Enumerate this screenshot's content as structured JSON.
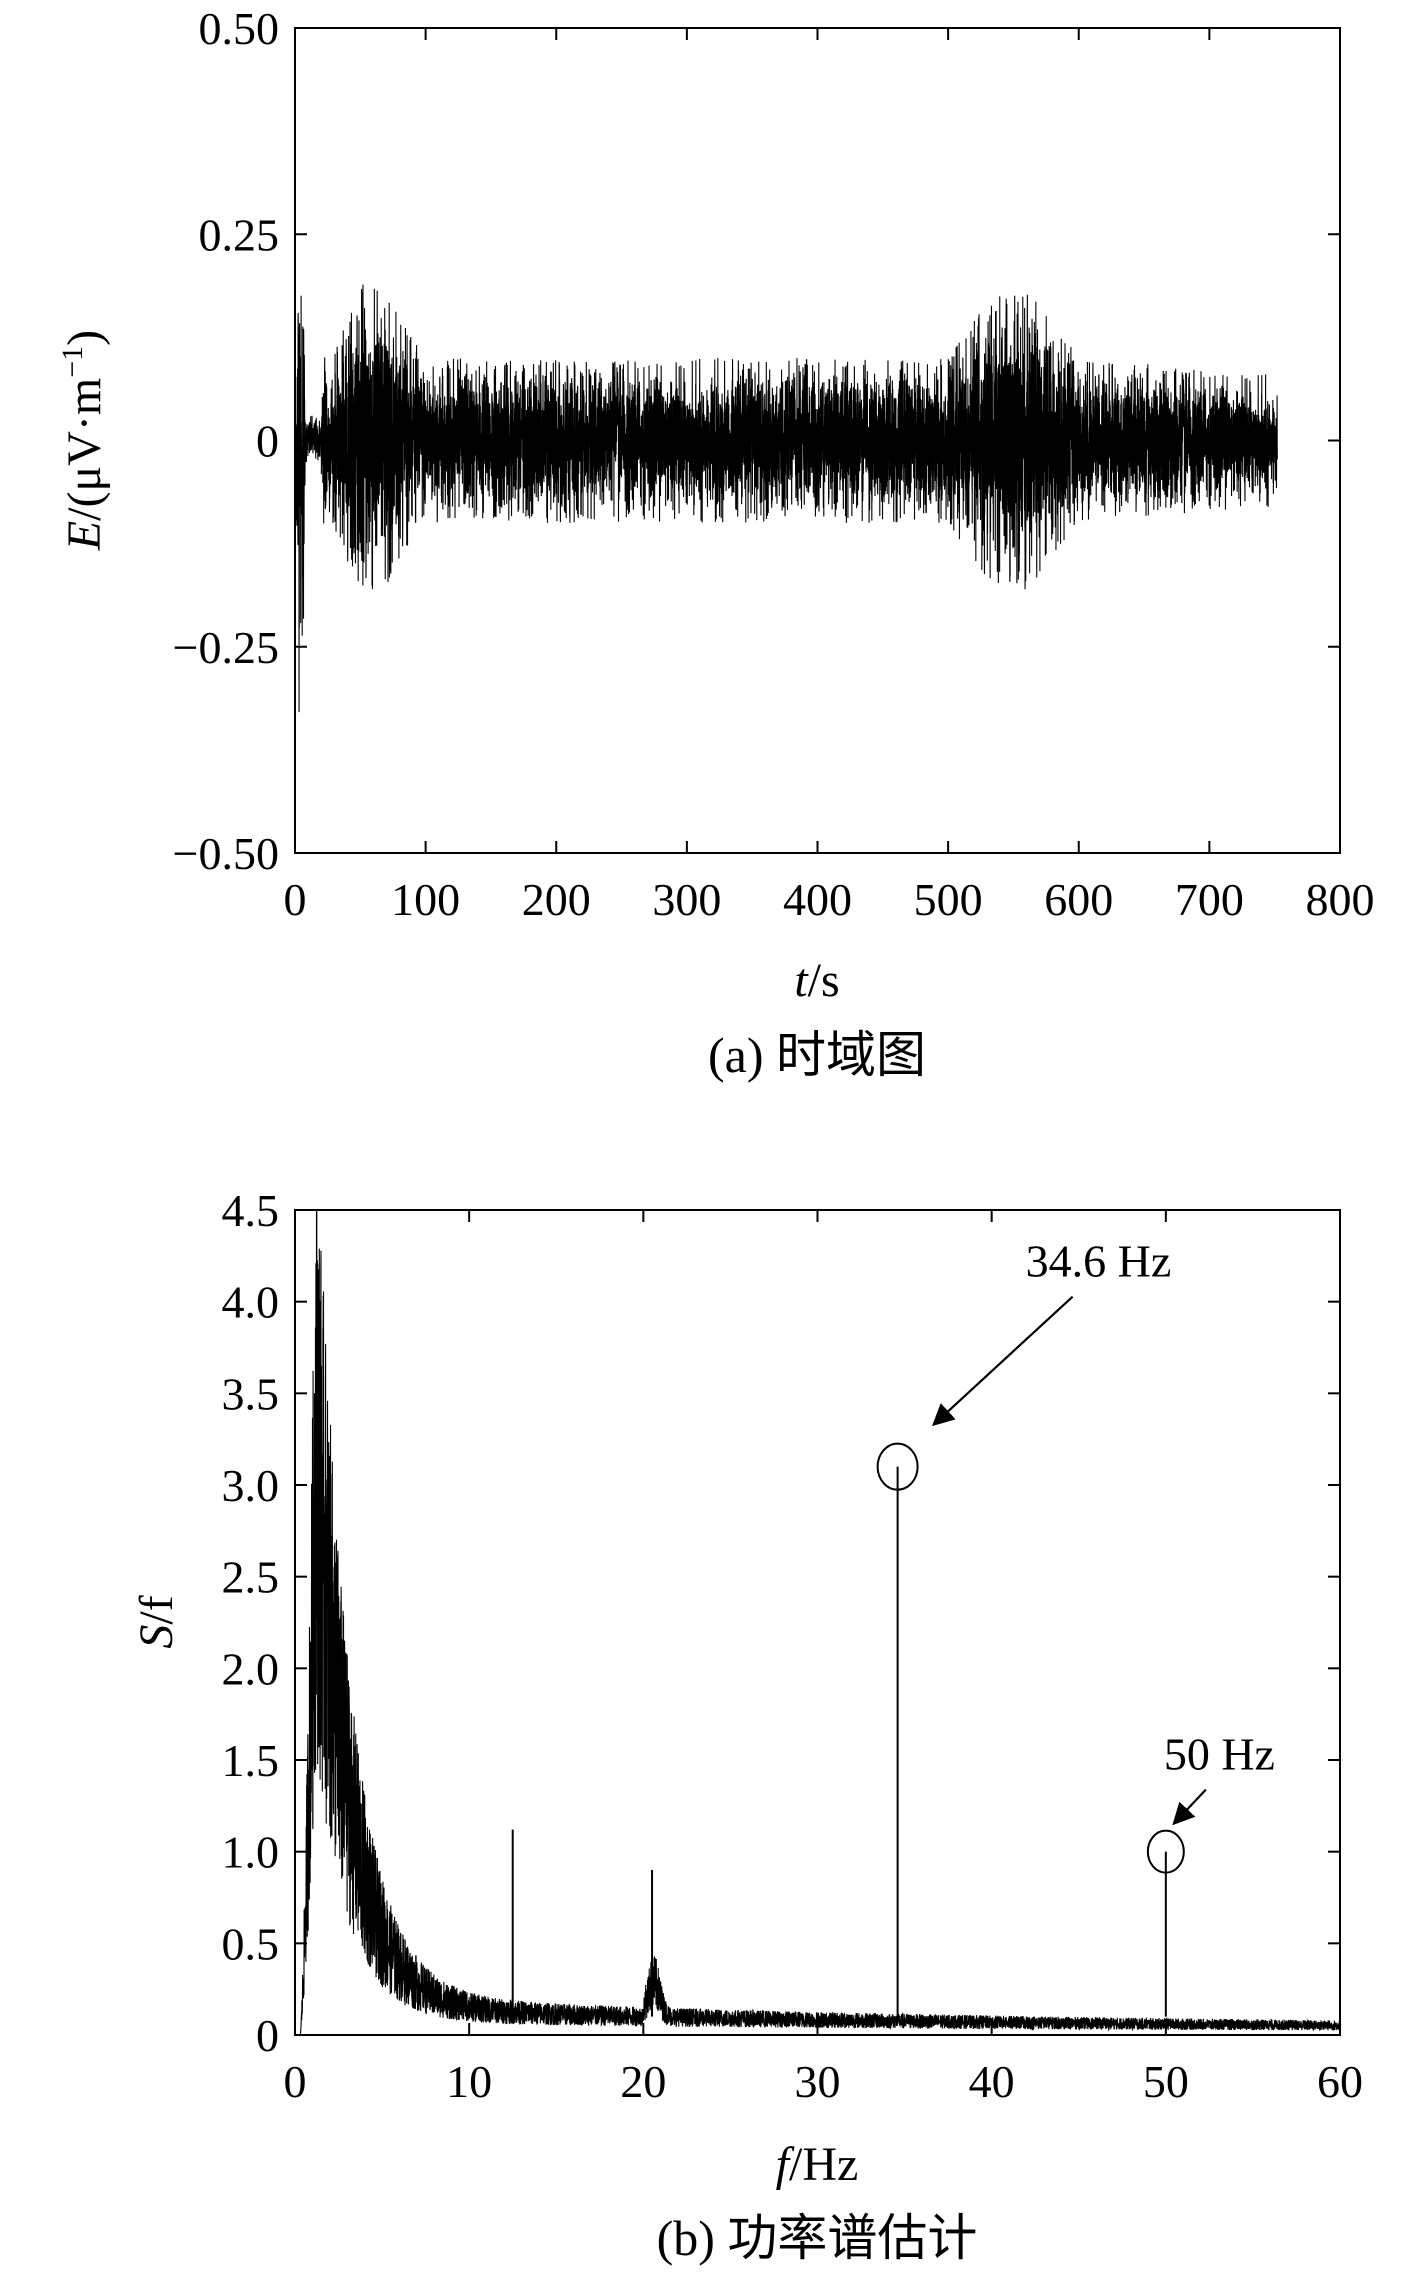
{
  "charts": [
    {
      "caption": "(a) 时域图",
      "chart_data": {
        "type": "line",
        "xlabel_italic": "t",
        "xlabel_rest": "/s",
        "ylabel_italic": "E",
        "ylabel_rest": "/(μV·m",
        "ylabel_sup": "−1",
        "ylabel_close": ")",
        "xlim": [
          0,
          800
        ],
        "ylim": [
          -0.5,
          0.5
        ],
        "x_ticks": [
          0,
          100,
          200,
          300,
          400,
          500,
          600,
          700,
          800
        ],
        "x_tick_labels": [
          "0",
          "100",
          "200",
          "300",
          "400",
          "500",
          "600",
          "700",
          "800"
        ],
        "y_ticks": [
          0.5,
          0.25,
          0,
          -0.25,
          -0.5
        ],
        "y_tick_labels": [
          "0.50",
          "0.25",
          "0",
          "−0.25",
          "−0.50"
        ],
        "series": [
          {
            "x_range": [
              0,
              752
            ],
            "envelope": [
              {
                "x": 0,
                "amp": 0.02
              },
              {
                "x": 3,
                "amp": 0.35
              },
              {
                "x": 6,
                "amp": 0.3
              },
              {
                "x": 8,
                "amp": 0.03
              },
              {
                "x": 20,
                "amp": 0.03
              },
              {
                "x": 23,
                "amp": 0.2
              },
              {
                "x": 25,
                "amp": 0.09
              },
              {
                "x": 57,
                "amp": 0.21
              },
              {
                "x": 100,
                "amp": 0.1
              },
              {
                "x": 500,
                "amp": 0.1
              },
              {
                "x": 530,
                "amp": 0.17
              },
              {
                "x": 560,
                "amp": 0.19
              },
              {
                "x": 600,
                "amp": 0.1
              },
              {
                "x": 752,
                "amp": 0.08
              }
            ]
          }
        ]
      }
    },
    {
      "caption": "(b) 功率谱估计",
      "chart_data": {
        "type": "line",
        "xlabel_italic": "f",
        "xlabel_rest": "/Hz",
        "ylabel_italic": "S",
        "ylabel_rest": "/f",
        "xlim": [
          0,
          60
        ],
        "ylim": [
          0,
          4.5
        ],
        "x_ticks": [
          0,
          10,
          20,
          30,
          40,
          50,
          60
        ],
        "x_tick_labels": [
          "0",
          "10",
          "20",
          "30",
          "40",
          "50",
          "60"
        ],
        "y_ticks": [
          4.5,
          4.0,
          3.5,
          3.0,
          2.5,
          2.0,
          1.5,
          1.0,
          0.5,
          0
        ],
        "y_tick_labels": [
          "4.5",
          "4.0",
          "3.5",
          "3.0",
          "2.5",
          "2.0",
          "1.5",
          "1.0",
          "0.5",
          "0"
        ],
        "series": [
          {
            "peak": {
              "x": 1.2,
              "y": 4.2
            },
            "background_at_60": 0.1,
            "spikes": [
              {
                "x": 12.5,
                "y": 1.12
              },
              {
                "x": 20.5,
                "y": 0.9
              },
              {
                "x": 34.6,
                "y": 3.1
              },
              {
                "x": 50,
                "y": 1.0
              }
            ]
          }
        ],
        "annotations": [
          {
            "text": "34.6 Hz",
            "x": 34.6,
            "y": 3.1
          },
          {
            "text": "50 Hz",
            "x": 50,
            "y": 1.0
          }
        ]
      }
    }
  ]
}
